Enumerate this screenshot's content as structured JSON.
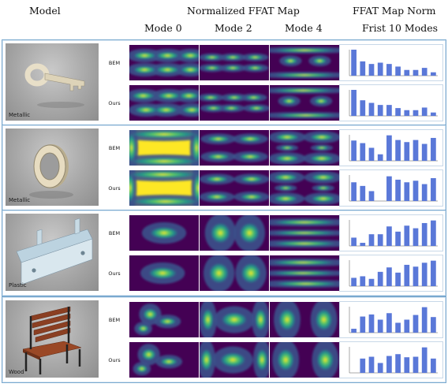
{
  "headers": {
    "model": "Model",
    "normalized_map": "Normalized FFAT Map",
    "map_norm": "FFAT Map Norm",
    "modes": [
      "Mode 0",
      "Mode 2",
      "Mode 4"
    ],
    "first_modes": "Frist 10 Modes"
  },
  "row_labels": [
    "BEM",
    "Ours"
  ],
  "models": [
    {
      "material": "Metallic",
      "object": "key",
      "bars": {
        "BEM": [
          1.0,
          0.55,
          0.45,
          0.5,
          0.45,
          0.35,
          0.22,
          0.22,
          0.3,
          0.13
        ],
        "Ours": [
          1.0,
          0.6,
          0.5,
          0.42,
          0.42,
          0.3,
          0.22,
          0.22,
          0.32,
          0.13
        ]
      }
    },
    {
      "material": "Metallic",
      "object": "ring",
      "bars": {
        "BEM": [
          0.78,
          0.68,
          0.5,
          0.25,
          0.98,
          0.8,
          0.72,
          0.8,
          0.65,
          0.88
        ],
        "Ours": [
          0.72,
          0.58,
          0.38,
          0.0,
          0.95,
          0.82,
          0.72,
          0.78,
          0.65,
          0.88
        ]
      }
    },
    {
      "material": "Plastic",
      "object": "plate",
      "bars": {
        "BEM": [
          0.32,
          0.12,
          0.45,
          0.45,
          0.75,
          0.55,
          0.78,
          0.68,
          0.88,
          0.98
        ],
        "Ours": [
          0.32,
          0.38,
          0.28,
          0.55,
          0.72,
          0.52,
          0.82,
          0.75,
          0.9,
          0.98
        ]
      }
    },
    {
      "material": "Wood",
      "object": "bench",
      "bars": {
        "BEM": [
          0.15,
          0.62,
          0.7,
          0.5,
          0.75,
          0.38,
          0.5,
          0.68,
          0.98,
          0.6
        ],
        "Ours": [
          0.0,
          0.55,
          0.62,
          0.38,
          0.65,
          0.72,
          0.6,
          0.62,
          0.98,
          0.55
        ]
      }
    }
  ],
  "colors": {
    "bar": "#5a78d8",
    "frame": "#7aa9cf",
    "colormap": [
      "#440154",
      "#3b528b",
      "#21918c",
      "#5ec962",
      "#fde725"
    ]
  }
}
